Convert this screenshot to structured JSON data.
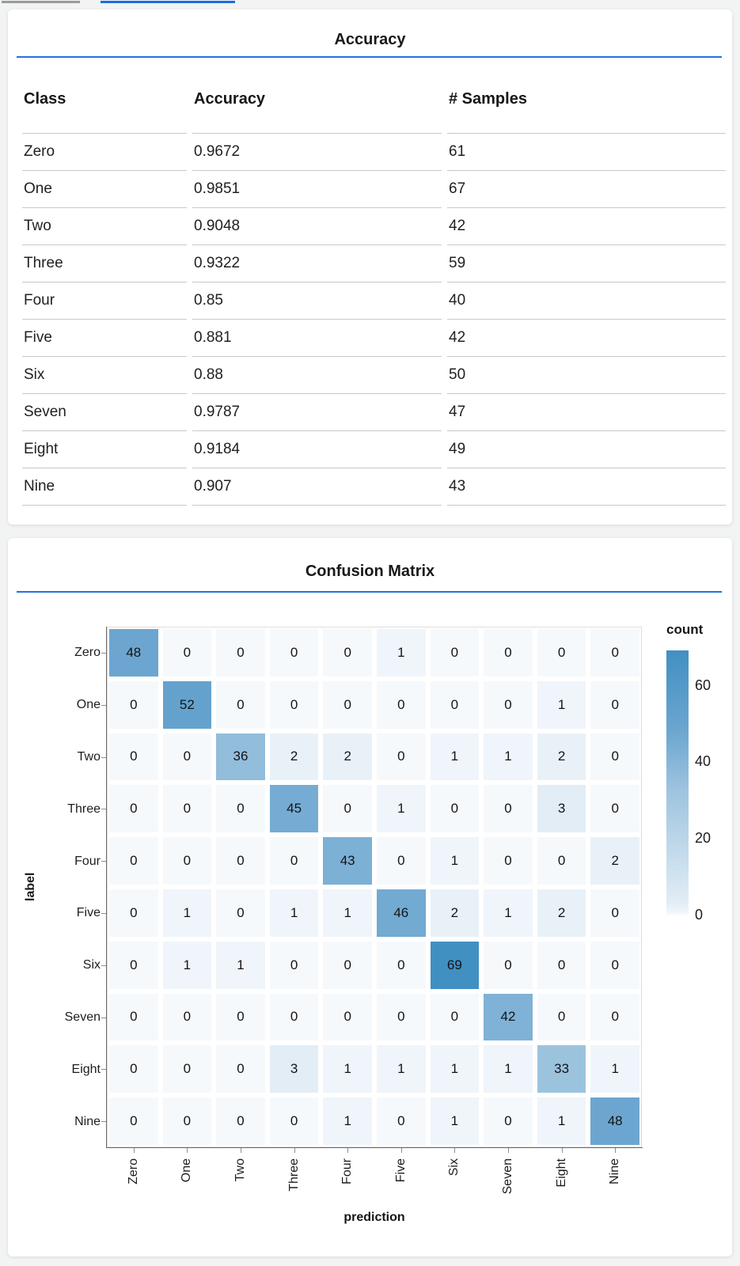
{
  "theme": {
    "accent_blue": "#2570e0",
    "indicator_gray": "#9b9b9b",
    "indicator_blue": "#1a6ce0",
    "card_background": "#ffffff",
    "page_background": "#f2f3f3"
  },
  "chart_data": [
    {
      "type": "table",
      "title": "Accuracy",
      "columns": [
        "Class",
        "Accuracy",
        "# Samples"
      ],
      "rows": [
        [
          "Zero",
          "0.9672",
          "61"
        ],
        [
          "One",
          "0.9851",
          "67"
        ],
        [
          "Two",
          "0.9048",
          "42"
        ],
        [
          "Three",
          "0.9322",
          "59"
        ],
        [
          "Four",
          "0.85",
          "40"
        ],
        [
          "Five",
          "0.881",
          "42"
        ],
        [
          "Six",
          "0.88",
          "50"
        ],
        [
          "Seven",
          "0.9787",
          "47"
        ],
        [
          "Eight",
          "0.9184",
          "49"
        ],
        [
          "Nine",
          "0.907",
          "43"
        ]
      ]
    },
    {
      "type": "heatmap",
      "title": "Confusion Matrix",
      "xlabel": "prediction",
      "ylabel": "label",
      "categories": [
        "Zero",
        "One",
        "Two",
        "Three",
        "Four",
        "Five",
        "Six",
        "Seven",
        "Eight",
        "Nine"
      ],
      "matrix": [
        [
          48,
          0,
          0,
          0,
          0,
          1,
          0,
          0,
          0,
          0
        ],
        [
          0,
          52,
          0,
          0,
          0,
          0,
          0,
          0,
          1,
          0
        ],
        [
          0,
          0,
          36,
          2,
          2,
          0,
          1,
          1,
          2,
          0
        ],
        [
          0,
          0,
          0,
          45,
          0,
          1,
          0,
          0,
          3,
          0
        ],
        [
          0,
          0,
          0,
          0,
          43,
          0,
          1,
          0,
          0,
          2
        ],
        [
          0,
          1,
          0,
          1,
          1,
          46,
          2,
          1,
          2,
          0
        ],
        [
          0,
          1,
          1,
          0,
          0,
          0,
          69,
          0,
          0,
          0
        ],
        [
          0,
          0,
          0,
          0,
          0,
          0,
          0,
          42,
          0,
          0
        ],
        [
          0,
          0,
          0,
          3,
          1,
          1,
          1,
          1,
          33,
          1
        ],
        [
          0,
          0,
          0,
          0,
          1,
          0,
          1,
          0,
          1,
          48
        ]
      ],
      "legend": {
        "title": "count",
        "ticks": [
          60,
          40,
          20,
          0
        ],
        "domain": [
          0,
          69
        ]
      },
      "color_scale": {
        "stops": [
          [
            0,
            "#f6f9fc"
          ],
          [
            0.043,
            "#e2edf6"
          ],
          [
            0.478,
            "#9cc3de"
          ],
          [
            0.696,
            "#6ca6d0"
          ],
          [
            1,
            "#4190c2"
          ]
        ]
      },
      "grid": true,
      "legend_position": "right"
    }
  ]
}
